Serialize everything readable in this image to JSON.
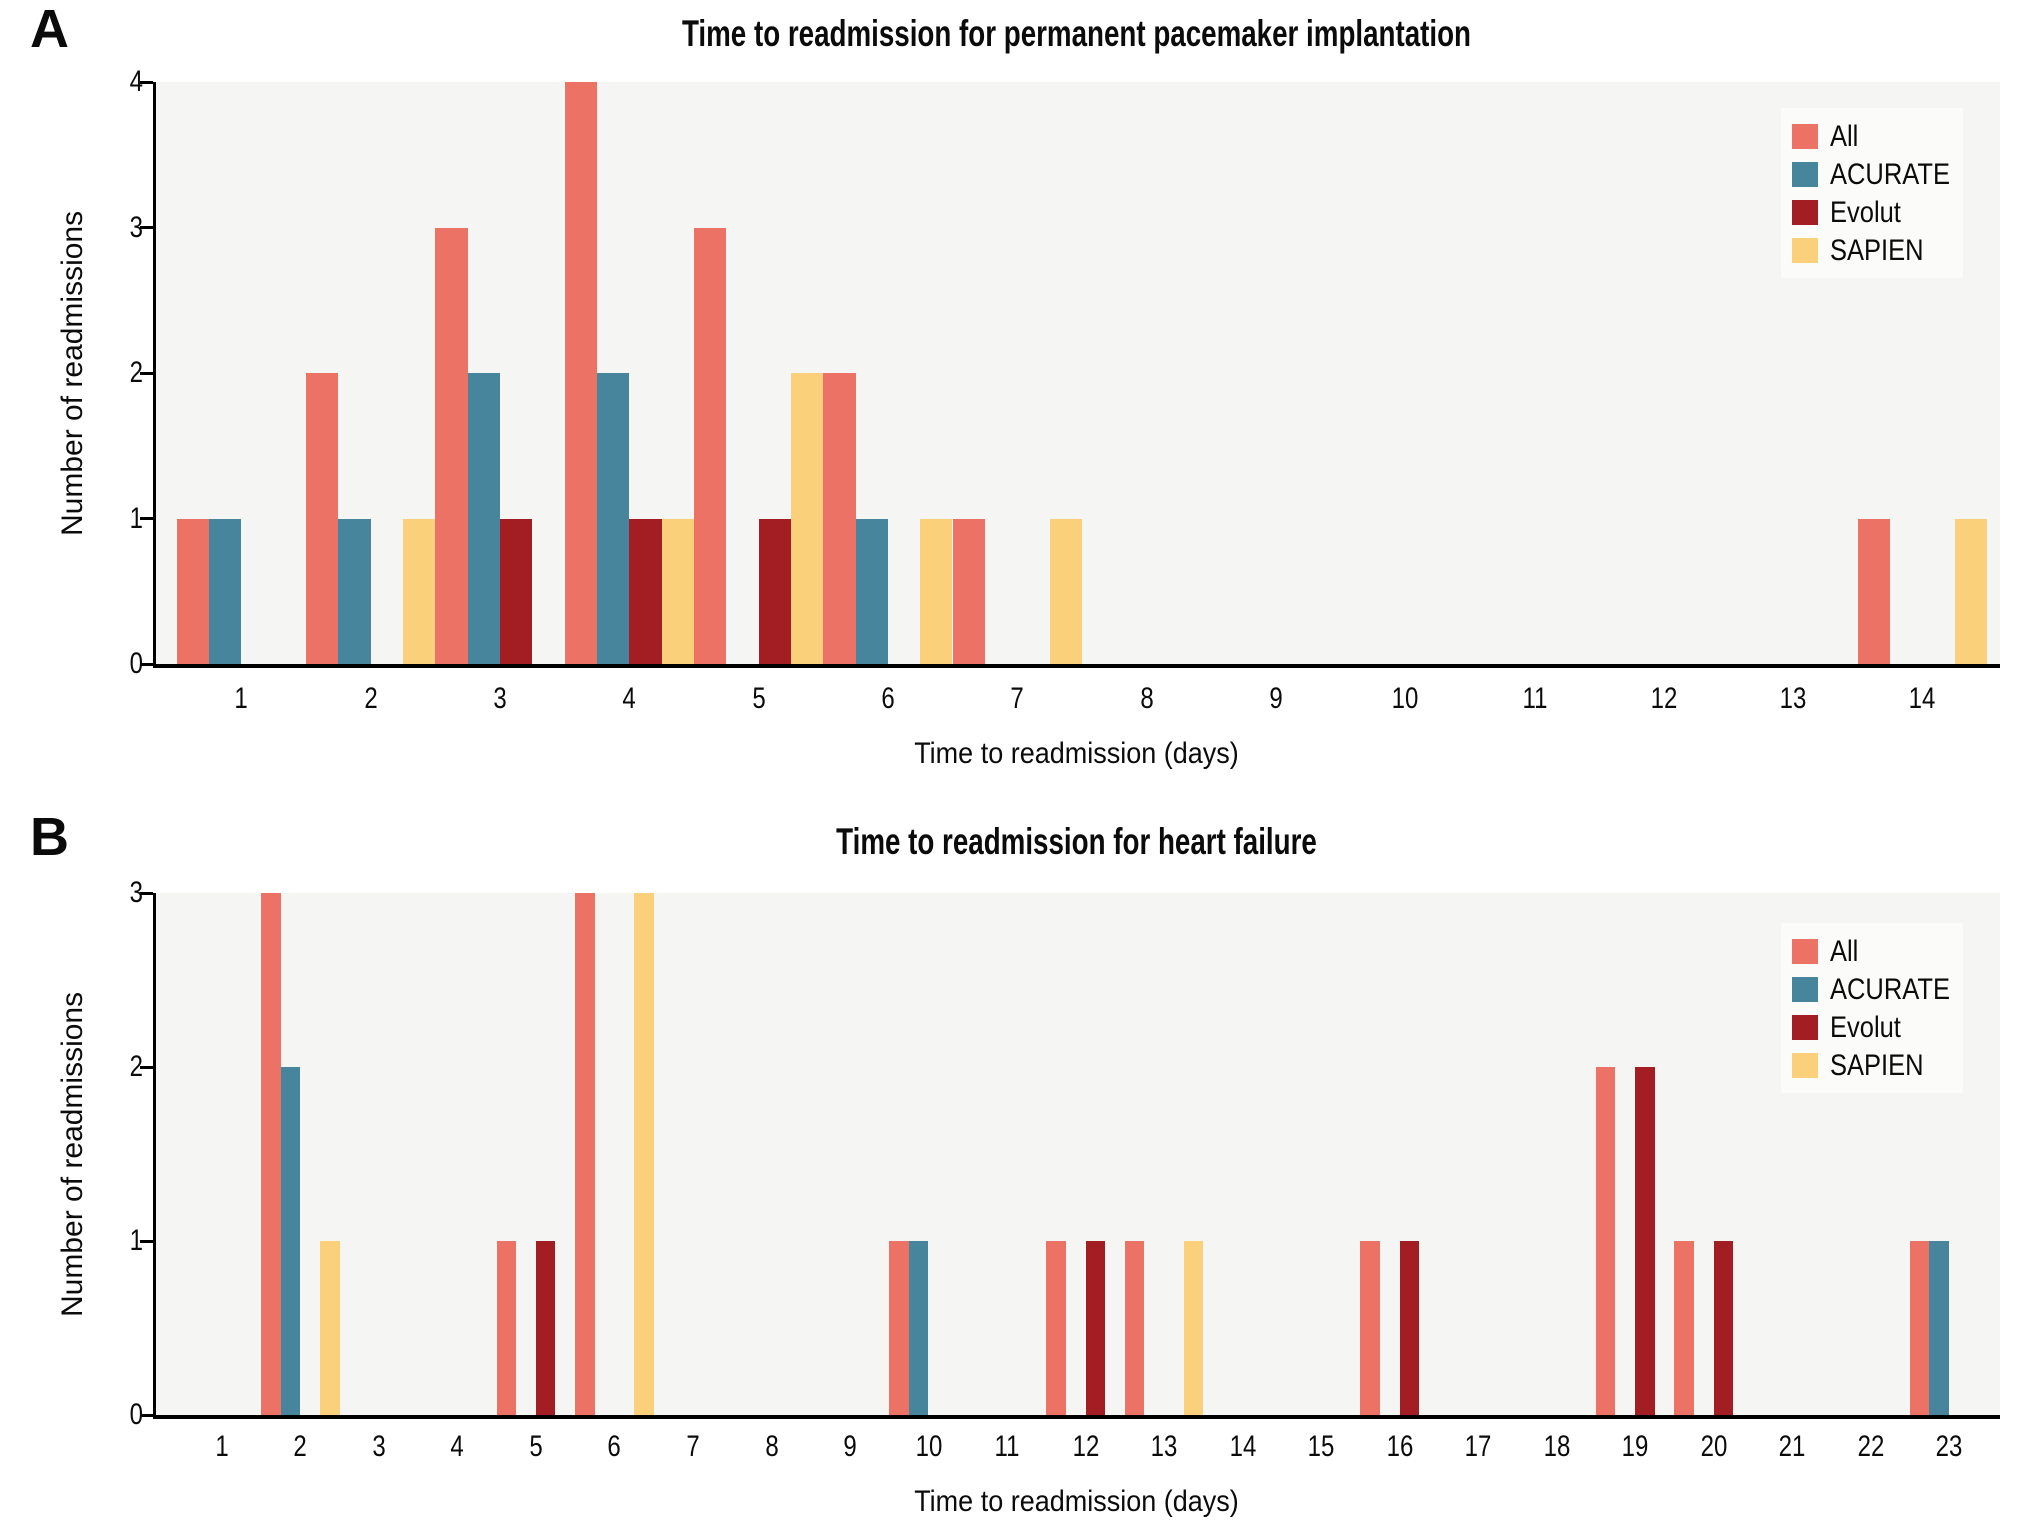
{
  "figure": {
    "background": "#ffffff",
    "plot_background": "#F5F5F3",
    "legend_background": "#FBFBF9",
    "axis_color": "#000000",
    "series_colors": {
      "All": "#EC7265",
      "ACURATE": "#46859B",
      "Evolut": "#A31E23",
      "SAPIEN": "#FAD07B"
    }
  },
  "chart_data": [
    {
      "id": "A",
      "type": "bar",
      "panel_label": "A",
      "title": "Time to readmission for permanent pacemaker implantation",
      "xlabel": "Time to readmission (days)",
      "ylabel": "Number of readmissions",
      "x_ticks": [
        1,
        2,
        3,
        4,
        5,
        6,
        7,
        8,
        9,
        10,
        11,
        12,
        13,
        14
      ],
      "y_ticks": [
        0,
        1,
        2,
        3,
        4
      ],
      "xlim": [
        0.34,
        14.6
      ],
      "ylim": [
        0,
        4
      ],
      "bin_width": 1,
      "grid": false,
      "legend": {
        "position": "top-right",
        "entries": [
          "All",
          "ACURATE",
          "Evolut",
          "SAPIEN"
        ]
      },
      "series": [
        {
          "name": "All",
          "color": "#EC7265",
          "points": [
            [
              1,
              1
            ],
            [
              2,
              2
            ],
            [
              3,
              3
            ],
            [
              4,
              4
            ],
            [
              5,
              3
            ],
            [
              6,
              2
            ],
            [
              7,
              1
            ],
            [
              14,
              1
            ]
          ]
        },
        {
          "name": "ACURATE",
          "color": "#46859B",
          "points": [
            [
              1,
              1
            ],
            [
              2,
              1
            ],
            [
              3,
              2
            ],
            [
              4,
              2
            ],
            [
              6,
              1
            ]
          ]
        },
        {
          "name": "Evolut",
          "color": "#A31E23",
          "points": [
            [
              3,
              1
            ],
            [
              4,
              1
            ],
            [
              5,
              1
            ]
          ]
        },
        {
          "name": "SAPIEN",
          "color": "#FAD07B",
          "points": [
            [
              2,
              1
            ],
            [
              4,
              1
            ],
            [
              5,
              2
            ],
            [
              6,
              1
            ],
            [
              7,
              1
            ],
            [
              14,
              1
            ]
          ]
        }
      ]
    },
    {
      "id": "B",
      "type": "bar",
      "panel_label": "B",
      "title": "Time to readmission for heart failure",
      "xlabel": "Time to readmission (days)",
      "ylabel": "Number of readmissions",
      "x_ticks": [
        1,
        2,
        3,
        4,
        5,
        6,
        7,
        8,
        9,
        10,
        11,
        12,
        13,
        14,
        15,
        16,
        17,
        18,
        19,
        20,
        21,
        22,
        23
      ],
      "y_ticks": [
        0,
        1,
        2,
        3
      ],
      "xlim": [
        0.16,
        23.65
      ],
      "ylim": [
        0,
        3
      ],
      "bin_width": 1,
      "grid": false,
      "legend": {
        "position": "top-right",
        "entries": [
          "All",
          "ACURATE",
          "Evolut",
          "SAPIEN"
        ]
      },
      "series": [
        {
          "name": "All",
          "color": "#EC7265",
          "points": [
            [
              2,
              3
            ],
            [
              5,
              1
            ],
            [
              6,
              3
            ],
            [
              10,
              1
            ],
            [
              12,
              1
            ],
            [
              13,
              1
            ],
            [
              16,
              1
            ],
            [
              19,
              2
            ],
            [
              20,
              1
            ],
            [
              23,
              1
            ]
          ]
        },
        {
          "name": "ACURATE",
          "color": "#46859B",
          "points": [
            [
              2,
              2
            ],
            [
              10,
              1
            ],
            [
              23,
              1
            ]
          ]
        },
        {
          "name": "Evolut",
          "color": "#A31E23",
          "points": [
            [
              5,
              1
            ],
            [
              12,
              1
            ],
            [
              16,
              1
            ],
            [
              19,
              2
            ],
            [
              20,
              1
            ]
          ]
        },
        {
          "name": "SAPIEN",
          "color": "#FAD07B",
          "points": [
            [
              2,
              1
            ],
            [
              6,
              3
            ],
            [
              13,
              1
            ]
          ]
        }
      ]
    }
  ]
}
